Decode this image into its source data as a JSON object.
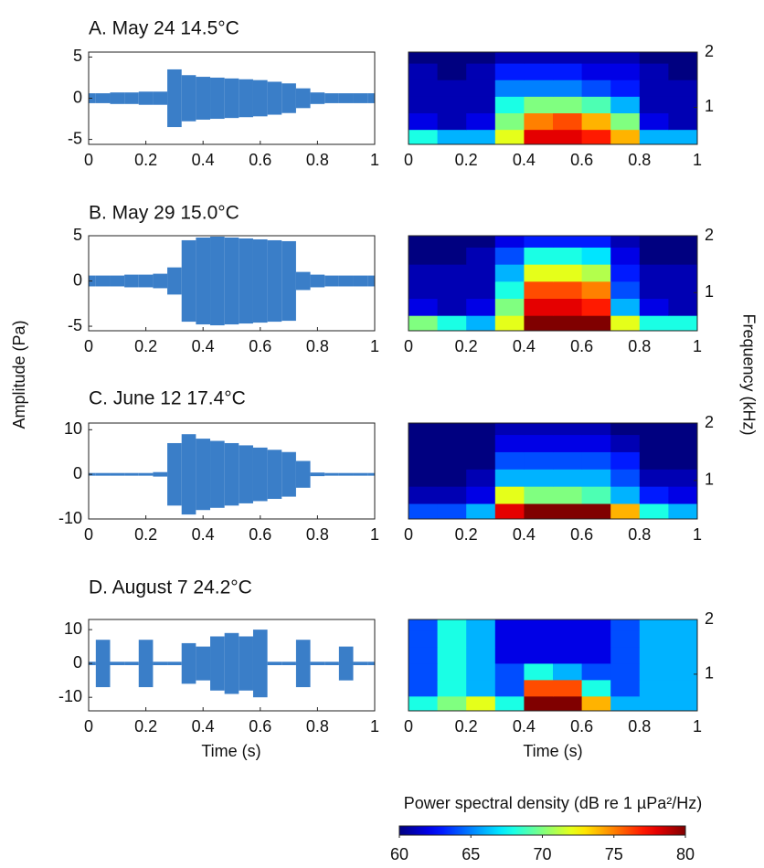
{
  "chart_data": {
    "type": "waveform-spectrogram",
    "y_label": "Amplitude (Pa)",
    "y2_label": "Frequency (kHz)",
    "x_label": "Time (s)",
    "xlim": [
      0,
      1
    ],
    "xticks": [
      0,
      0.2,
      0.4,
      0.6,
      0.8,
      1
    ],
    "waveform_color": "#3a7ec8",
    "colorbar": {
      "title": "Power spectral density (dB re 1 µPa²/Hz)",
      "lim": [
        60,
        80
      ],
      "ticks": [
        60,
        65,
        70,
        75,
        80
      ],
      "colormap": "jet"
    },
    "panels": [
      {
        "title": "A. May 24 14.5°C",
        "waveform": {
          "x": [
            0,
            0.05,
            0.1,
            0.15,
            0.2,
            0.25,
            0.3,
            0.35,
            0.4,
            0.45,
            0.5,
            0.55,
            0.6,
            0.65,
            0.7,
            0.75,
            0.8,
            0.85,
            0.9,
            0.95,
            1
          ],
          "values": [
            0.6,
            0.6,
            0.7,
            0.7,
            0.8,
            0.8,
            3.5,
            2.8,
            2.6,
            2.5,
            2.4,
            2.3,
            2.2,
            2.0,
            1.8,
            1.2,
            0.7,
            0.6,
            0.6,
            0.6,
            0.6
          ],
          "ylim": [
            -5.6,
            5.6
          ],
          "yticks": [
            -5,
            0,
            5
          ]
        },
        "spectrogram": {
          "time_bins": [
            0,
            0.1,
            0.2,
            0.3,
            0.4,
            0.5,
            0.6,
            0.7,
            0.8,
            0.9,
            1
          ],
          "freq_bins": [
            0.33,
            0.6,
            0.9,
            1.2,
            1.5,
            1.8,
            2.0
          ],
          "z": [
            [
              68,
              66,
              66,
              72,
              78,
              78,
              77,
              74,
              66,
              66
            ],
            [
              62,
              61,
              62,
              70,
              75,
              76,
              74,
              70,
              62,
              61
            ],
            [
              61,
              61,
              61,
              68,
              70,
              70,
              69,
              66,
              61,
              61
            ],
            [
              61,
              61,
              61,
              65,
              65,
              65,
              64,
              63,
              61,
              61
            ],
            [
              61,
              60,
              61,
              63,
              63,
              63,
              62,
              62,
              61,
              60
            ],
            [
              60,
              60,
              60,
              61,
              61,
              61,
              61,
              61,
              60,
              60
            ]
          ],
          "ylim": [
            0.33,
            2.0
          ],
          "yticks": [
            1,
            2
          ]
        }
      },
      {
        "title": "B. May 29 15.0°C",
        "waveform": {
          "x": [
            0,
            0.05,
            0.1,
            0.15,
            0.2,
            0.25,
            0.3,
            0.35,
            0.4,
            0.45,
            0.5,
            0.55,
            0.6,
            0.65,
            0.7,
            0.75,
            0.8,
            0.85,
            0.9,
            0.95,
            1
          ],
          "values": [
            0.6,
            0.6,
            0.6,
            0.7,
            0.7,
            0.8,
            1.5,
            4.5,
            4.8,
            4.9,
            4.8,
            4.7,
            4.6,
            4.5,
            4.4,
            1.0,
            0.7,
            0.6,
            0.6,
            0.6,
            0.6
          ],
          "ylim": [
            -5.5,
            5
          ],
          "yticks": [
            -5,
            0,
            5
          ]
        },
        "spectrogram": {
          "time_bins": [
            0,
            0.1,
            0.2,
            0.3,
            0.4,
            0.5,
            0.6,
            0.7,
            0.8,
            0.9,
            1
          ],
          "freq_bins": [
            0.33,
            0.6,
            0.9,
            1.2,
            1.5,
            1.8,
            2.0
          ],
          "z": [
            [
              70,
              68,
              66,
              72,
              80,
              80,
              80,
              72,
              68,
              68
            ],
            [
              62,
              61,
              62,
              70,
              78,
              78,
              77,
              66,
              62,
              61
            ],
            [
              61,
              61,
              61,
              68,
              76,
              76,
              75,
              64,
              61,
              61
            ],
            [
              61,
              61,
              61,
              66,
              72,
              72,
              71,
              63,
              61,
              61
            ],
            [
              60,
              60,
              61,
              64,
              68,
              68,
              67,
              62,
              60,
              60
            ],
            [
              60,
              60,
              60,
              62,
              63,
              63,
              63,
              61,
              60,
              60
            ]
          ],
          "ylim": [
            0.33,
            2.0
          ],
          "yticks": [
            1,
            2
          ]
        }
      },
      {
        "title": "C. June 12 17.4°C",
        "waveform": {
          "x": [
            0,
            0.05,
            0.1,
            0.15,
            0.2,
            0.25,
            0.3,
            0.35,
            0.4,
            0.45,
            0.5,
            0.55,
            0.6,
            0.65,
            0.7,
            0.75,
            0.8,
            0.85,
            0.9,
            0.95,
            1
          ],
          "values": [
            0.3,
            0.3,
            0.3,
            0.3,
            0.3,
            0.5,
            7,
            9,
            8,
            7.5,
            7,
            6.5,
            6,
            5.5,
            5,
            3,
            0.4,
            0.3,
            0.3,
            0.3,
            0.3
          ],
          "ylim": [
            -10,
            11.5
          ],
          "yticks": [
            -10,
            0,
            10
          ]
        },
        "spectrogram": {
          "time_bins": [
            0,
            0.1,
            0.2,
            0.3,
            0.4,
            0.5,
            0.6,
            0.7,
            0.8,
            0.9,
            1
          ],
          "freq_bins": [
            0.33,
            0.6,
            0.9,
            1.2,
            1.5,
            1.8,
            2.0
          ],
          "z": [
            [
              64,
              64,
              66,
              78,
              80,
              80,
              80,
              74,
              68,
              66
            ],
            [
              61,
              61,
              62,
              72,
              70,
              70,
              69,
              66,
              63,
              62
            ],
            [
              60,
              60,
              61,
              66,
              66,
              66,
              66,
              64,
              61,
              61
            ],
            [
              60,
              60,
              60,
              64,
              64,
              64,
              64,
              63,
              60,
              60
            ],
            [
              60,
              60,
              60,
              62,
              62,
              62,
              62,
              61,
              60,
              60
            ],
            [
              60,
              60,
              60,
              61,
              61,
              61,
              61,
              60,
              60,
              60
            ]
          ],
          "ylim": [
            0.33,
            2.0
          ],
          "yticks": [
            1,
            2
          ]
        }
      },
      {
        "title": "D. August 7 24.2°C",
        "waveform": {
          "x": [
            0,
            0.05,
            0.1,
            0.15,
            0.2,
            0.25,
            0.3,
            0.35,
            0.4,
            0.45,
            0.5,
            0.55,
            0.6,
            0.65,
            0.7,
            0.75,
            0.8,
            0.85,
            0.9,
            0.95,
            1
          ],
          "values": [
            0.5,
            7,
            0.5,
            0.5,
            7,
            0.5,
            0.5,
            6,
            5,
            8,
            9,
            8,
            10,
            0.5,
            0.5,
            7,
            0.5,
            0.5,
            5,
            0.5,
            0.5
          ],
          "ylim": [
            -14,
            13
          ],
          "yticks": [
            -10,
            0,
            10
          ]
        },
        "spectrogram": {
          "time_bins": [
            0,
            0.1,
            0.2,
            0.3,
            0.4,
            0.5,
            0.6,
            0.7,
            0.8,
            0.9,
            1
          ],
          "freq_bins": [
            0.33,
            0.6,
            0.9,
            1.2,
            1.5,
            1.8,
            2.0
          ],
          "z": [
            [
              68,
              70,
              72,
              68,
              80,
              80,
              74,
              66,
              66,
              66
            ],
            [
              64,
              68,
              66,
              64,
              76,
              76,
              68,
              64,
              66,
              66
            ],
            [
              64,
              68,
              66,
              64,
              68,
              66,
              64,
              64,
              66,
              66
            ],
            [
              64,
              68,
              66,
              62,
              62,
              62,
              62,
              64,
              66,
              66
            ],
            [
              64,
              68,
              66,
              62,
              62,
              62,
              62,
              64,
              66,
              66
            ],
            [
              64,
              68,
              66,
              62,
              62,
              62,
              62,
              64,
              66,
              66
            ]
          ],
          "ylim": [
            0.33,
            2.0
          ],
          "yticks": [
            1,
            2
          ]
        }
      }
    ]
  }
}
